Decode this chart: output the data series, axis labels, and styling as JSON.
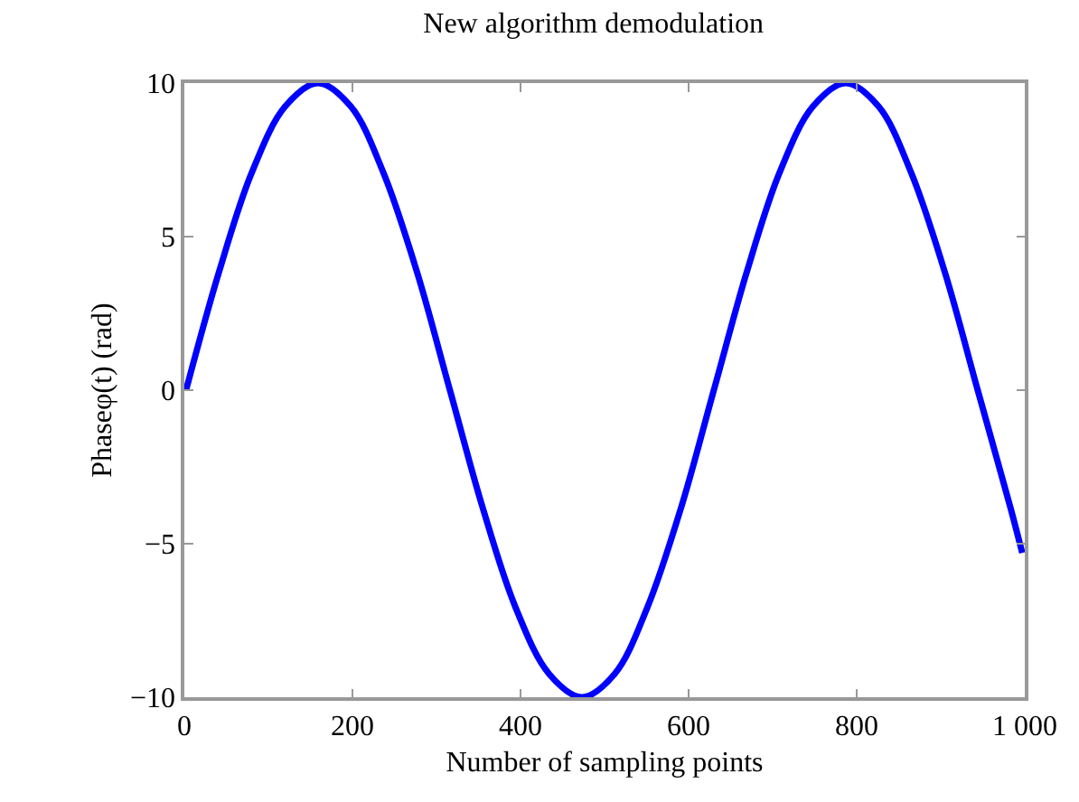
{
  "chart_data": {
    "type": "line",
    "title": "New algorithm demodulation",
    "xlabel": "Number of sampling points",
    "ylabel": "Phaseφ(t) (rad)",
    "series": [
      {
        "color": "#0000ff",
        "x": [
          2,
          41,
          80,
          120,
          159,
          198,
          237,
          277,
          316,
          355,
          394,
          434,
          473,
          512,
          551,
          591,
          630,
          669,
          708,
          748,
          787,
          826,
          865,
          905,
          944,
          983,
          997
        ],
        "values": [
          0,
          3.83,
          7.07,
          9.24,
          10,
          9.24,
          7.07,
          3.83,
          0,
          -3.83,
          -7.07,
          -9.24,
          -10,
          -9.24,
          -7.07,
          -3.83,
          0,
          3.83,
          7.07,
          9.24,
          10,
          9.24,
          7.07,
          3.83,
          0,
          -3.83,
          -5.3
        ]
      }
    ],
    "xlim": [
      0,
      1000
    ],
    "ylim": [
      -10,
      10
    ],
    "xticks": [
      0,
      200,
      400,
      600,
      800,
      {
        "value": 1000,
        "label": "1 000"
      }
    ],
    "yticks": [
      -10,
      -5,
      0,
      5,
      10
    ],
    "grid": false,
    "marker": "none",
    "line_style": "solid"
  }
}
